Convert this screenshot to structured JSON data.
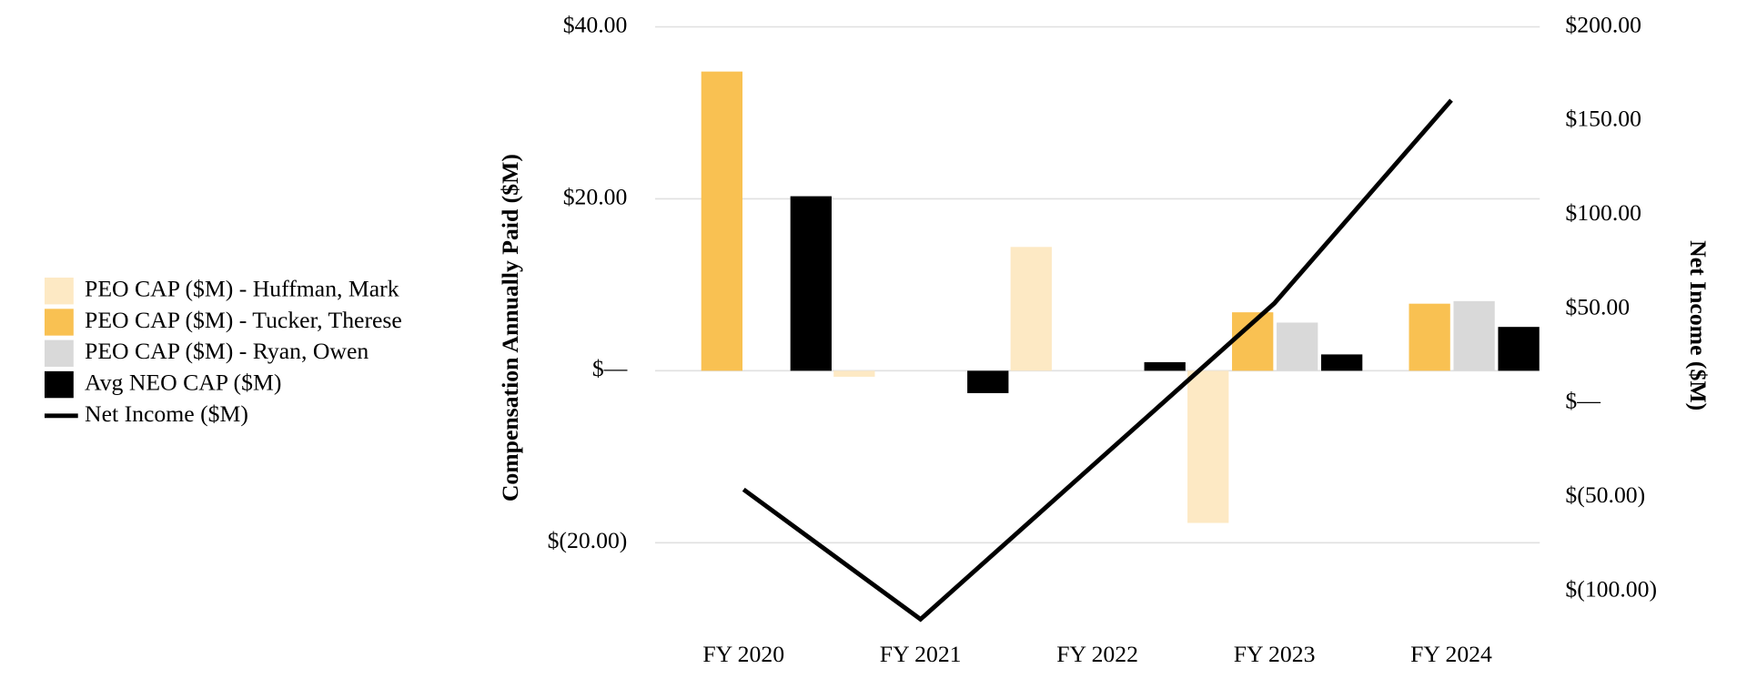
{
  "chart_data": {
    "type": "bar",
    "categories": [
      "FY 2020",
      "FY 2021",
      "FY 2022",
      "FY 2023",
      "FY 2024"
    ],
    "series": [
      {
        "name": "PEO CAP ($M) - Huffman, Mark",
        "color": "#fde9c4",
        "values": [
          null,
          -0.7,
          14.4,
          -17.7,
          null
        ]
      },
      {
        "name": "PEO CAP ($M) - Tucker, Therese",
        "color": "#f9c152",
        "values": [
          34.8,
          null,
          null,
          6.8,
          7.8
        ]
      },
      {
        "name": "PEO CAP ($M) - Ryan, Owen",
        "color": "#d9d9d9",
        "values": [
          null,
          null,
          null,
          5.6,
          8.1
        ]
      },
      {
        "name": "Avg NEO CAP ($M)",
        "color": "#000000",
        "values": [
          20.3,
          -2.6,
          1.0,
          1.9,
          5.1
        ]
      },
      {
        "name": "Net Income ($M)",
        "color": "#000000",
        "type": "line",
        "axis": "y2",
        "values": [
          -46,
          -115,
          -31,
          53,
          161
        ]
      }
    ],
    "ylabel": "Compensation Annually Paid ($M)",
    "y2label": "Net Income ($M)",
    "ylim": [
      -30,
      40
    ],
    "yticks": [
      {
        "value": 40,
        "label": "$40.00"
      },
      {
        "value": 20,
        "label": "$20.00"
      },
      {
        "value": 0,
        "label": "$—"
      },
      {
        "value": -20,
        "label": "$(20.00)"
      }
    ],
    "y2lim": [
      -120,
      200
    ],
    "y2ticks": [
      {
        "value": 200,
        "label": "$200.00"
      },
      {
        "value": 150,
        "label": "$150.00"
      },
      {
        "value": 100,
        "label": "$100.00"
      },
      {
        "value": 50,
        "label": "$50.00"
      },
      {
        "value": 0,
        "label": "$—"
      },
      {
        "value": -50,
        "label": "$(50.00)"
      },
      {
        "value": -100,
        "label": "$(100.00)"
      }
    ],
    "grid": true,
    "legend": "left"
  }
}
